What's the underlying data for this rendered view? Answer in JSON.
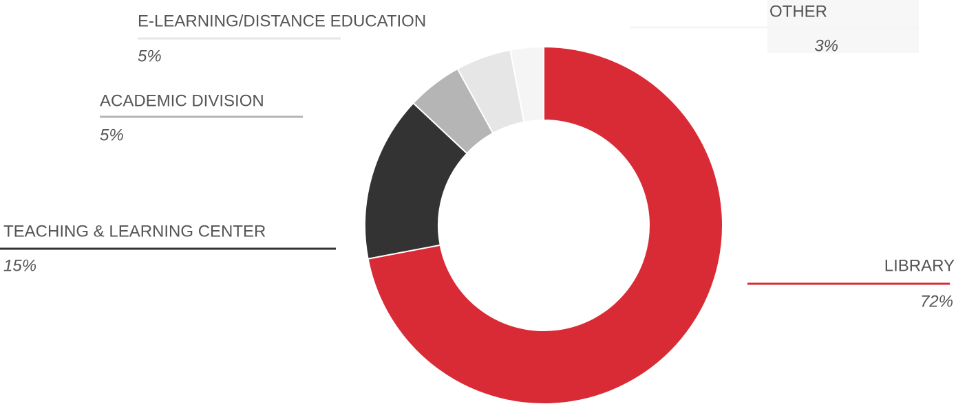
{
  "chart_data": {
    "type": "pie",
    "donut": true,
    "categories": [
      "LIBRARY",
      "TEACHING & LEARNING CENTER",
      "ACADEMIC DIVISION",
      "E-LEARNING/DISTANCE EDUCATION",
      "OTHER"
    ],
    "values": [
      72,
      15,
      5,
      5,
      3
    ],
    "value_labels": [
      "72%",
      "15%",
      "5%",
      "5%",
      "3%"
    ],
    "colors": [
      "#d92b35",
      "#333333",
      "#b5b5b5",
      "#e6e6e6",
      "#f5f5f5"
    ]
  }
}
